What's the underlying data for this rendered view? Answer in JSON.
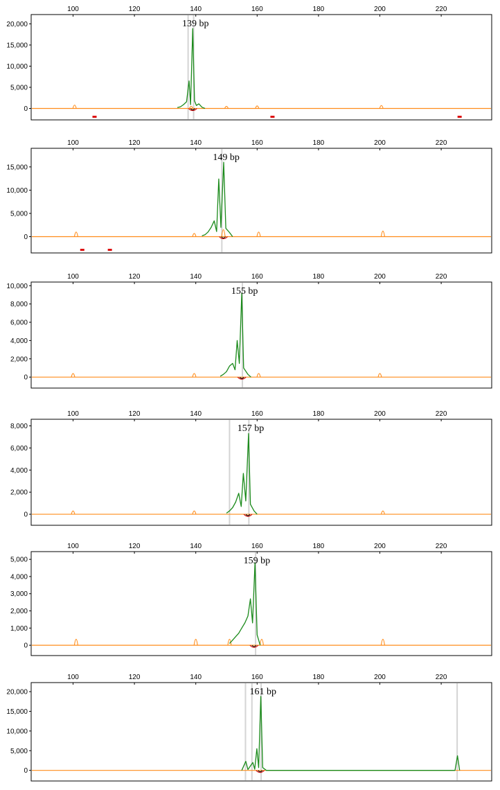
{
  "chart_data": [
    {
      "type": "line",
      "title": "",
      "peak_label": "139 bp",
      "peak_bp": 139,
      "x_ticks": [
        100,
        120,
        140,
        160,
        180,
        200,
        220
      ],
      "xlim": [
        81.5,
        236.5
      ],
      "y_ticks": [
        0,
        5000,
        10000,
        15000,
        20000
      ],
      "y_tick_labels": [
        "0",
        "5,000",
        "10,000",
        "15,000",
        "20,000"
      ],
      "ylim": [
        -2700,
        22200
      ],
      "grid": false,
      "markers": [
        137.5,
        139.3
      ],
      "series": [
        {
          "color": "#1a8a1a",
          "x": [
            134,
            135,
            136,
            137,
            137.8,
            138.3,
            139,
            139.6,
            140.2,
            141,
            142,
            143
          ],
          "values": [
            200,
            400,
            900,
            1600,
            6500,
            900,
            18900,
            1800,
            700,
            1100,
            300,
            0
          ]
        },
        {
          "color": "#ff8c1a",
          "x": [
            100.5,
            138.5,
            150,
            160,
            200.5
          ],
          "values": [
            800,
            500,
            500,
            600,
            700
          ]
        }
      ],
      "red_bars": [
        107,
        165,
        226
      ]
    },
    {
      "type": "line",
      "title": "",
      "peak_label": "149 bp",
      "peak_bp": 149,
      "x_ticks": [
        100,
        120,
        140,
        160,
        180,
        200,
        220
      ],
      "xlim": [
        81.5,
        236.5
      ],
      "y_ticks": [
        0,
        5000,
        10000,
        15000
      ],
      "y_tick_labels": [
        "0",
        "5,000",
        "10,000",
        "15,000"
      ],
      "ylim": [
        -3500,
        19000
      ],
      "grid": false,
      "markers": [
        148.5
      ],
      "series": [
        {
          "color": "#1a8a1a",
          "x": [
            142,
            143,
            144,
            145,
            146,
            146.8,
            147.5,
            148.2,
            149.1,
            149.8,
            151,
            152
          ],
          "values": [
            200,
            400,
            1000,
            2000,
            3400,
            1100,
            12400,
            2000,
            16000,
            1800,
            900,
            0
          ]
        },
        {
          "color": "#ff8c1a",
          "x": [
            101,
            139.5,
            149,
            160.5,
            201
          ],
          "values": [
            1000,
            700,
            1500,
            1000,
            1200
          ]
        }
      ],
      "red_bars": [
        103,
        112
      ]
    },
    {
      "type": "line",
      "title": "",
      "peak_label": "155 bp",
      "peak_bp": 155,
      "x_ticks": [
        100,
        120,
        140,
        160,
        180,
        200,
        220
      ],
      "xlim": [
        81.5,
        236.5
      ],
      "y_ticks": [
        0,
        2000,
        4000,
        6000,
        8000,
        10000
      ],
      "y_tick_labels": [
        "0",
        "2,000",
        "4,000",
        "6,000",
        "8,000",
        "10,000"
      ],
      "ylim": [
        -1200,
        10400
      ],
      "grid": false,
      "markers": [
        155.2
      ],
      "series": [
        {
          "color": "#1a8a1a",
          "x": [
            148,
            149,
            150,
            151,
            152,
            152.8,
            153.5,
            154.2,
            155,
            155.6,
            157,
            158
          ],
          "values": [
            100,
            300,
            600,
            1200,
            1500,
            800,
            4000,
            1500,
            9200,
            1000,
            300,
            0
          ]
        },
        {
          "color": "#ff8c1a",
          "x": [
            100,
            139.5,
            160.5,
            200
          ],
          "values": [
            400,
            400,
            400,
            400
          ]
        }
      ],
      "red_bars": []
    },
    {
      "type": "line",
      "title": "",
      "peak_label": "157 bp",
      "peak_bp": 157,
      "x_ticks": [
        100,
        120,
        140,
        160,
        180,
        200,
        220
      ],
      "xlim": [
        81.5,
        236.5
      ],
      "y_ticks": [
        0,
        2000,
        4000,
        6000,
        8000
      ],
      "y_tick_labels": [
        "0",
        "2,000",
        "4,000",
        "6,000",
        "8,000"
      ],
      "ylim": [
        -1000,
        8600
      ],
      "grid": false,
      "markers": [
        151,
        157.3
      ],
      "series": [
        {
          "color": "#1a8a1a",
          "x": [
            150,
            151,
            152,
            153,
            154,
            154.8,
            155.5,
            156.3,
            157.2,
            157.8,
            159,
            160
          ],
          "values": [
            100,
            300,
            600,
            1100,
            1900,
            700,
            3700,
            1200,
            7300,
            900,
            300,
            0
          ]
        },
        {
          "color": "#ff8c1a",
          "x": [
            100,
            139.5,
            201
          ],
          "values": [
            300,
            300,
            300
          ]
        }
      ],
      "red_bars": []
    },
    {
      "type": "line",
      "title": "",
      "peak_label": "159 bp",
      "peak_bp": 159,
      "x_ticks": [
        100,
        120,
        140,
        160,
        180,
        200,
        220
      ],
      "xlim": [
        81.5,
        236.5
      ],
      "y_ticks": [
        0,
        1000,
        2000,
        3000,
        4000,
        5000
      ],
      "y_tick_labels": [
        "0",
        "1,000",
        "2,000",
        "3,000",
        "4,000",
        "5,000"
      ],
      "ylim": [
        -600,
        5450
      ],
      "grid": false,
      "markers": [
        159.5
      ],
      "series": [
        {
          "color": "#1a8a1a",
          "x": [
            151,
            152,
            153,
            154,
            155,
            156,
            157,
            157.8,
            158.5,
            159.3,
            160,
            161
          ],
          "values": [
            100,
            300,
            500,
            700,
            1000,
            1300,
            1700,
            2700,
            1300,
            4800,
            600,
            0
          ]
        },
        {
          "color": "#ff8c1a",
          "x": [
            101,
            140,
            151,
            161.5,
            201
          ],
          "values": [
            350,
            350,
            350,
            350,
            350
          ]
        }
      ],
      "red_bars": []
    },
    {
      "type": "line",
      "title": "",
      "peak_label": "161 bp",
      "peak_bp": 161,
      "x_ticks": [
        100,
        120,
        140,
        160,
        180,
        200,
        220
      ],
      "xlim": [
        81.5,
        236.5
      ],
      "y_ticks": [
        0,
        5000,
        10000,
        15000,
        20000
      ],
      "y_tick_labels": [
        "0",
        "5,000",
        "10,000",
        "15,000",
        "20,000"
      ],
      "ylim": [
        -2700,
        22300
      ],
      "grid": false,
      "markers": [
        156.2,
        158.3,
        161.3,
        225.2
      ],
      "series": [
        {
          "color": "#1a8a1a",
          "x": [
            155,
            156.3,
            157,
            158.6,
            159.2,
            159.9,
            160.5,
            161.2,
            161.8,
            163,
            224.5,
            225.3,
            226
          ],
          "values": [
            0,
            2300,
            200,
            2000,
            300,
            5500,
            700,
            18800,
            700,
            0,
            0,
            3700,
            0
          ]
        },
        {
          "color": "#ff8c1a",
          "x": [],
          "values": []
        }
      ],
      "red_bars": []
    }
  ]
}
